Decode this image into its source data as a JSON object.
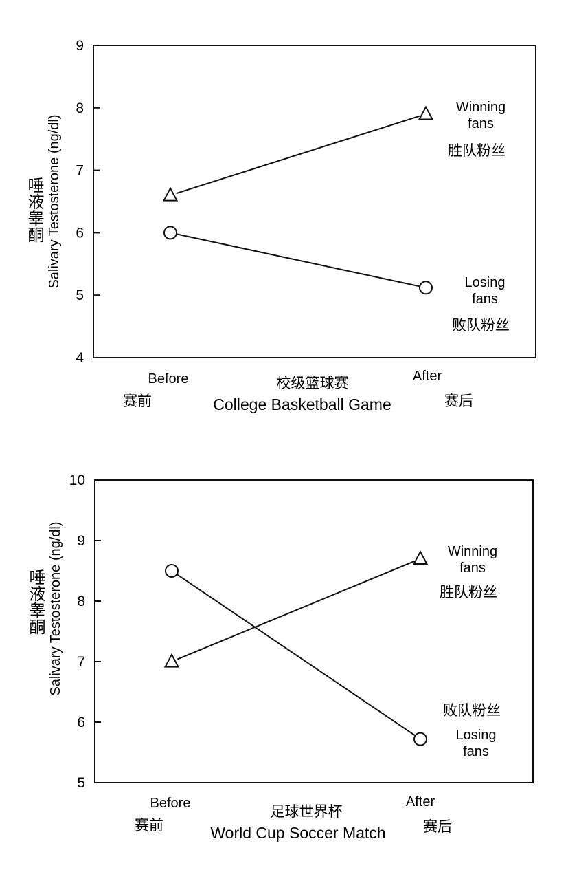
{
  "chart_data": [
    {
      "type": "line",
      "title": "College Basketball Game",
      "title_cn": "校级篮球赛",
      "ylabel": "Salivary Testosterone (ng/dl)",
      "ylabel_cn": "唾液睾酮",
      "categories": [
        "Before",
        "After"
      ],
      "categories_cn": [
        "赛前",
        "赛后"
      ],
      "ylim": [
        4,
        9
      ],
      "yticks": [
        "4",
        "5",
        "6",
        "7",
        "8",
        "9"
      ],
      "grid": false,
      "series": [
        {
          "name": "Winning fans",
          "name_cn": "胜队粉丝",
          "marker": "triangle",
          "values": [
            6.6,
            7.9
          ]
        },
        {
          "name": "Losing fans",
          "name_cn": "败队粉丝",
          "marker": "circle",
          "values": [
            6.0,
            5.12
          ]
        }
      ]
    },
    {
      "type": "line",
      "title": "World Cup Soccer Match",
      "title_cn": "足球世界杯",
      "ylabel": "Salivary Testosterone (ng/dl)",
      "ylabel_cn": "唾液睾酮",
      "categories": [
        "Before",
        "After"
      ],
      "categories_cn": [
        "赛前",
        "赛后"
      ],
      "ylim": [
        5,
        10
      ],
      "yticks": [
        "5",
        "6",
        "7",
        "8",
        "9",
        "10"
      ],
      "grid": false,
      "series": [
        {
          "name": "Winning fans",
          "name_cn": "胜队粉丝",
          "marker": "triangle",
          "values": [
            7.0,
            8.7
          ]
        },
        {
          "name": "Losing fans",
          "name_cn": "败队粉丝",
          "marker": "circle",
          "values": [
            8.5,
            5.72
          ]
        }
      ]
    }
  ]
}
